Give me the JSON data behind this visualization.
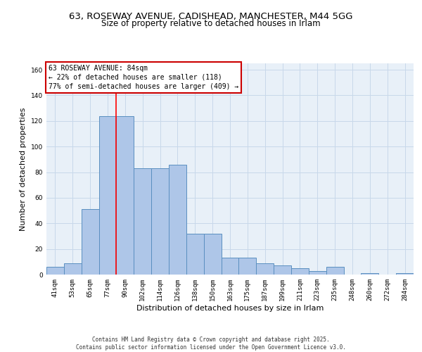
{
  "title_line1": "63, ROSEWAY AVENUE, CADISHEAD, MANCHESTER, M44 5GG",
  "title_line2": "Size of property relative to detached houses in Irlam",
  "xlabel": "Distribution of detached houses by size in Irlam",
  "ylabel": "Number of detached properties",
  "categories": [
    "41sqm",
    "53sqm",
    "65sqm",
    "77sqm",
    "90sqm",
    "102sqm",
    "114sqm",
    "126sqm",
    "138sqm",
    "150sqm",
    "163sqm",
    "175sqm",
    "187sqm",
    "199sqm",
    "211sqm",
    "223sqm",
    "235sqm",
    "248sqm",
    "260sqm",
    "272sqm",
    "284sqm"
  ],
  "values": [
    6,
    9,
    51,
    124,
    124,
    83,
    83,
    86,
    32,
    32,
    13,
    13,
    9,
    7,
    5,
    3,
    6,
    0,
    1,
    0,
    1
  ],
  "bar_color": "#aec6e8",
  "bar_edge_color": "#5a8fc0",
  "bar_width": 1.0,
  "red_line_x": 3.5,
  "annotation_text": "63 ROSEWAY AVENUE: 84sqm\n← 22% of detached houses are smaller (118)\n77% of semi-detached houses are larger (409) →",
  "annotation_box_color": "#ffffff",
  "annotation_box_edge": "#cc0000",
  "ylim": [
    0,
    165
  ],
  "yticks": [
    0,
    20,
    40,
    60,
    80,
    100,
    120,
    140,
    160
  ],
  "grid_color": "#c8d8ea",
  "background_color": "#e8f0f8",
  "footer_text": "Contains HM Land Registry data © Crown copyright and database right 2025.\nContains public sector information licensed under the Open Government Licence v3.0.",
  "title_fontsize": 9.5,
  "subtitle_fontsize": 8.5,
  "tick_fontsize": 6.5,
  "label_fontsize": 8,
  "annotation_fontsize": 7,
  "footer_fontsize": 5.5
}
